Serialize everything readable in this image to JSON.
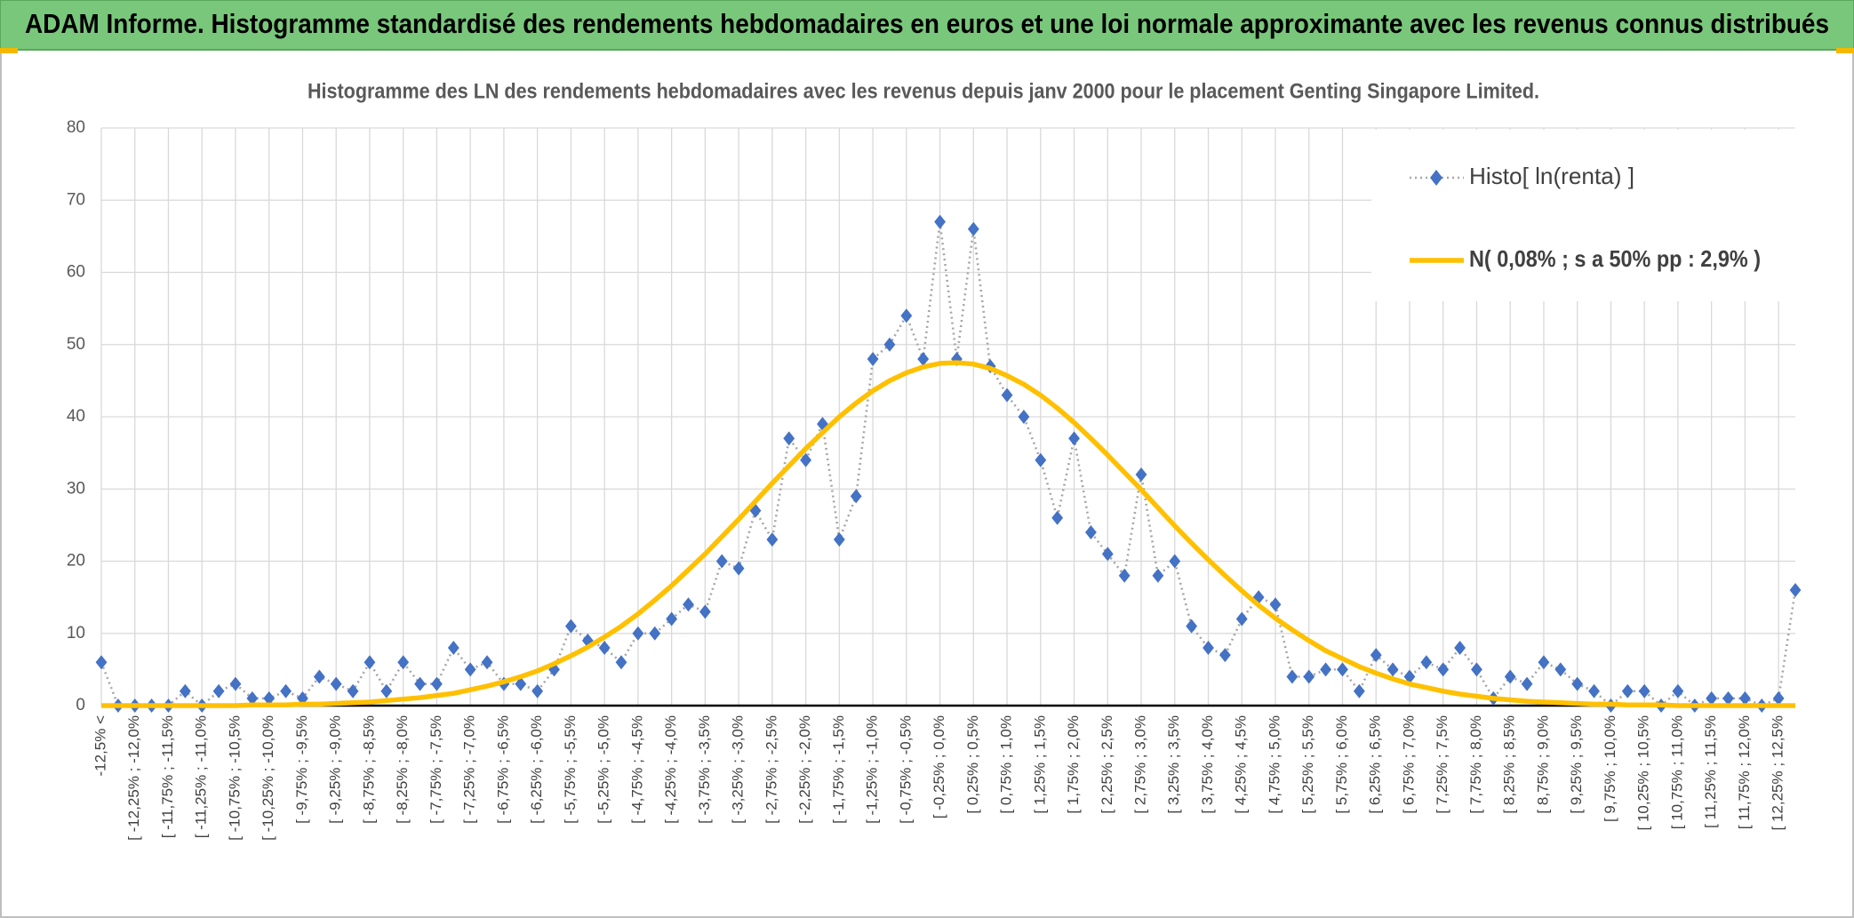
{
  "header": {
    "title": "ADAM Informe. Histogramme standardisé des rendements hebdomadaires en euros et une loi normale approximante avec les revenus connus distribués"
  },
  "chart_data": {
    "type": "line",
    "title": "Histogramme des LN des rendements hebdomadaires avec les revenus depuis janv 2000 pour le placement Genting Singapore Limited.",
    "categories": [
      "-12,5% <",
      null,
      "[ -12,25% ; -12,0%",
      null,
      "[ -11,75% ; -11,5%",
      null,
      "[ -11,25% ; -11,0%",
      null,
      "[ -10,75% ; -10,5%",
      null,
      "[ -10,25% ; -10,0%",
      null,
      "[ -9,75% ; -9,5%",
      null,
      "[ -9,25% ; -9,0%",
      null,
      "[ -8,75% ; -8,5%",
      null,
      "[ -8,25% ; -8,0%",
      null,
      "[ -7,75% ; -7,5%",
      null,
      "[ -7,25% ; -7,0%",
      null,
      "[ -6,75% ; -6,5%",
      null,
      "[ -6,25% ; -6,0%",
      null,
      "[ -5,75% ; -5,5%",
      null,
      "[ -5,25% ; -5,0%",
      null,
      "[ -4,75% ; -4,5%",
      null,
      "[ -4,25% ; -4,0%",
      null,
      "[ -3,75% ; -3,5%",
      null,
      "[ -3,25% ; -3,0%",
      null,
      "[ -2,75% ; -2,5%",
      null,
      "[ -2,25% ; -2,0%",
      null,
      "[ -1,75% ; -1,5%",
      null,
      "[ -1,25% ; -1,0%",
      null,
      "[ -0,75% ; -0,5%",
      null,
      "[ -0,25% ; 0,0%",
      null,
      "[ 0,25% ; 0,5%",
      null,
      "[ 0,75% ; 1,0%",
      null,
      "[ 1,25% ; 1,5%",
      null,
      "[ 1,75% ; 2,0%",
      null,
      "[ 2,25% ; 2,5%",
      null,
      "[ 2,75% ; 3,0%",
      null,
      "[ 3,25% ; 3,5%",
      null,
      "[ 3,75% ; 4,0%",
      null,
      "[ 4,25% ; 4,5%",
      null,
      "[ 4,75% ; 5,0%",
      null,
      "[ 5,25% ; 5,5%",
      null,
      "[ 5,75% ; 6,0%",
      null,
      "[ 6,25% ; 6,5%",
      null,
      "[ 6,75% ; 7,0%",
      null,
      "[ 7,25% ; 7,5%",
      null,
      "[ 7,75% ; 8,0%",
      null,
      "[ 8,25% ; 8,5%",
      null,
      "[ 8,75% ; 9,0%",
      null,
      "[ 9,25% ; 9,5%",
      null,
      "[ 9,75% ; 10,0%",
      null,
      "[ 10,25% ; 10,5%",
      null,
      "[ 10,75% ; 11,0%",
      null,
      "[ 11,25% ; 11,5%",
      null,
      "[ 11,75% ; 12,0%",
      null,
      "[ 12,25% ; 12,5%",
      null
    ],
    "series": [
      {
        "name": "Histo[ ln(renta) ]",
        "color": "#4472c4",
        "line_color": "#a6a6a6",
        "marker": "diamond",
        "line_style": "dotted",
        "values": [
          6,
          0,
          0,
          0,
          0,
          2,
          0,
          2,
          3,
          1,
          1,
          2,
          1,
          4,
          3,
          2,
          6,
          2,
          6,
          3,
          3,
          8,
          5,
          6,
          3,
          3,
          2,
          5,
          11,
          9,
          8,
          6,
          10,
          10,
          12,
          14,
          13,
          20,
          19,
          27,
          23,
          37,
          34,
          39,
          23,
          29,
          48,
          50,
          54,
          48,
          67,
          48,
          66,
          47,
          43,
          40,
          34,
          26,
          37,
          24,
          21,
          18,
          32,
          18,
          20,
          11,
          8,
          7,
          12,
          15,
          14,
          4,
          4,
          5,
          5,
          2,
          7,
          5,
          4,
          6,
          5,
          8,
          5,
          1,
          4,
          3,
          6,
          5,
          3,
          2,
          0,
          2,
          2,
          0,
          2,
          0,
          1,
          1,
          1,
          0,
          1,
          16
        ]
      },
      {
        "name": "N( 0,08% ; s a 50% pp : 2,9% )",
        "color": "#ffc000",
        "marker": "none",
        "line_style": "solid",
        "values": [
          0,
          0,
          0,
          0,
          0,
          0,
          0,
          0,
          0,
          0.1,
          0.1,
          0.1,
          0.2,
          0.2,
          0.3,
          0.4,
          0.5,
          0.7,
          0.9,
          1.1,
          1.4,
          1.7,
          2.2,
          2.7,
          3.3,
          4.0,
          4.8,
          5.8,
          6.9,
          8.1,
          9.5,
          11.0,
          12.7,
          14.6,
          16.6,
          18.8,
          21.0,
          23.4,
          25.8,
          28.3,
          30.8,
          33.2,
          35.6,
          37.8,
          40.0,
          41.9,
          43.6,
          45.0,
          46.1,
          46.9,
          47.4,
          47.5,
          47.3,
          46.7,
          45.7,
          44.5,
          43.0,
          41.2,
          39.2,
          37.0,
          34.7,
          32.3,
          29.9,
          27.4,
          24.9,
          22.5,
          20.2,
          18.0,
          15.9,
          13.9,
          12.1,
          10.5,
          9.0,
          7.6,
          6.5,
          5.4,
          4.5,
          3.7,
          3.0,
          2.5,
          2.0,
          1.6,
          1.3,
          1.0,
          0.8,
          0.6,
          0.5,
          0.4,
          0.3,
          0.2,
          0.2,
          0.1,
          0.1,
          0.1,
          0,
          0,
          0,
          0,
          0,
          0,
          0,
          0
        ]
      }
    ],
    "ylim": [
      0,
      80
    ],
    "yticks": [
      0,
      10,
      20,
      30,
      40,
      50,
      60,
      70,
      80
    ],
    "grid": true,
    "legend": "upper right"
  }
}
